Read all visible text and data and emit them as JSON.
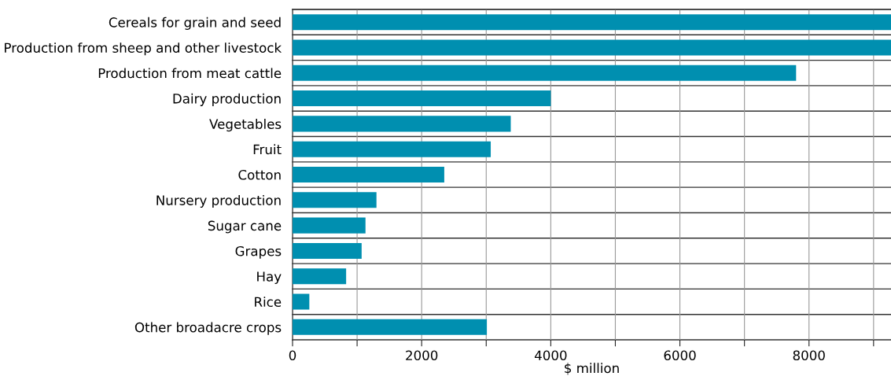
{
  "chart_data": {
    "type": "bar",
    "orientation": "horizontal",
    "xlabel": "$ million",
    "categories": [
      "Cereals for grain and seed",
      "Production from sheep and other livestock",
      "Production from meat cattle",
      "Dairy production",
      "Vegetables",
      "Fruit",
      "Cotton",
      "Nursery production",
      "Sugar cane",
      "Grapes",
      "Hay",
      "Rice",
      "Other broadacre crops"
    ],
    "values": [
      9270,
      9270,
      7800,
      4000,
      3380,
      3070,
      2350,
      1300,
      1130,
      1070,
      830,
      260,
      3010
    ],
    "color": "#008fb0",
    "xlim": [
      0,
      9270
    ],
    "xticks": [
      0,
      {
        "value": 1000,
        "label": null
      },
      2000,
      {
        "value": 3000,
        "label": null
      },
      4000,
      {
        "value": 5000,
        "label": null
      },
      6000,
      {
        "value": 7000,
        "label": null
      },
      8000,
      {
        "value": 9000,
        "label": null
      }
    ],
    "grid": true
  }
}
